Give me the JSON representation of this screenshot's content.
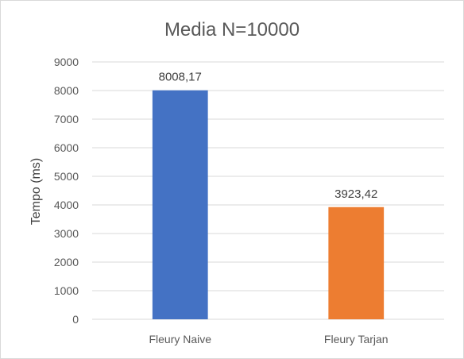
{
  "chart_data": {
    "type": "bar",
    "title": "Media N=10000",
    "xlabel": "",
    "ylabel": "Tempo (ms)",
    "categories": [
      "Fleury Naive",
      "Fleury Tarjan"
    ],
    "values": [
      8008.17,
      3923.42
    ],
    "data_labels": [
      "8008,17",
      "3923,42"
    ],
    "colors": [
      "#4472c4",
      "#ed7d31"
    ],
    "ylim": [
      0,
      9000
    ],
    "yticks": [
      0,
      1000,
      2000,
      3000,
      4000,
      5000,
      6000,
      7000,
      8000,
      9000
    ],
    "grid": true,
    "legend": "none"
  }
}
